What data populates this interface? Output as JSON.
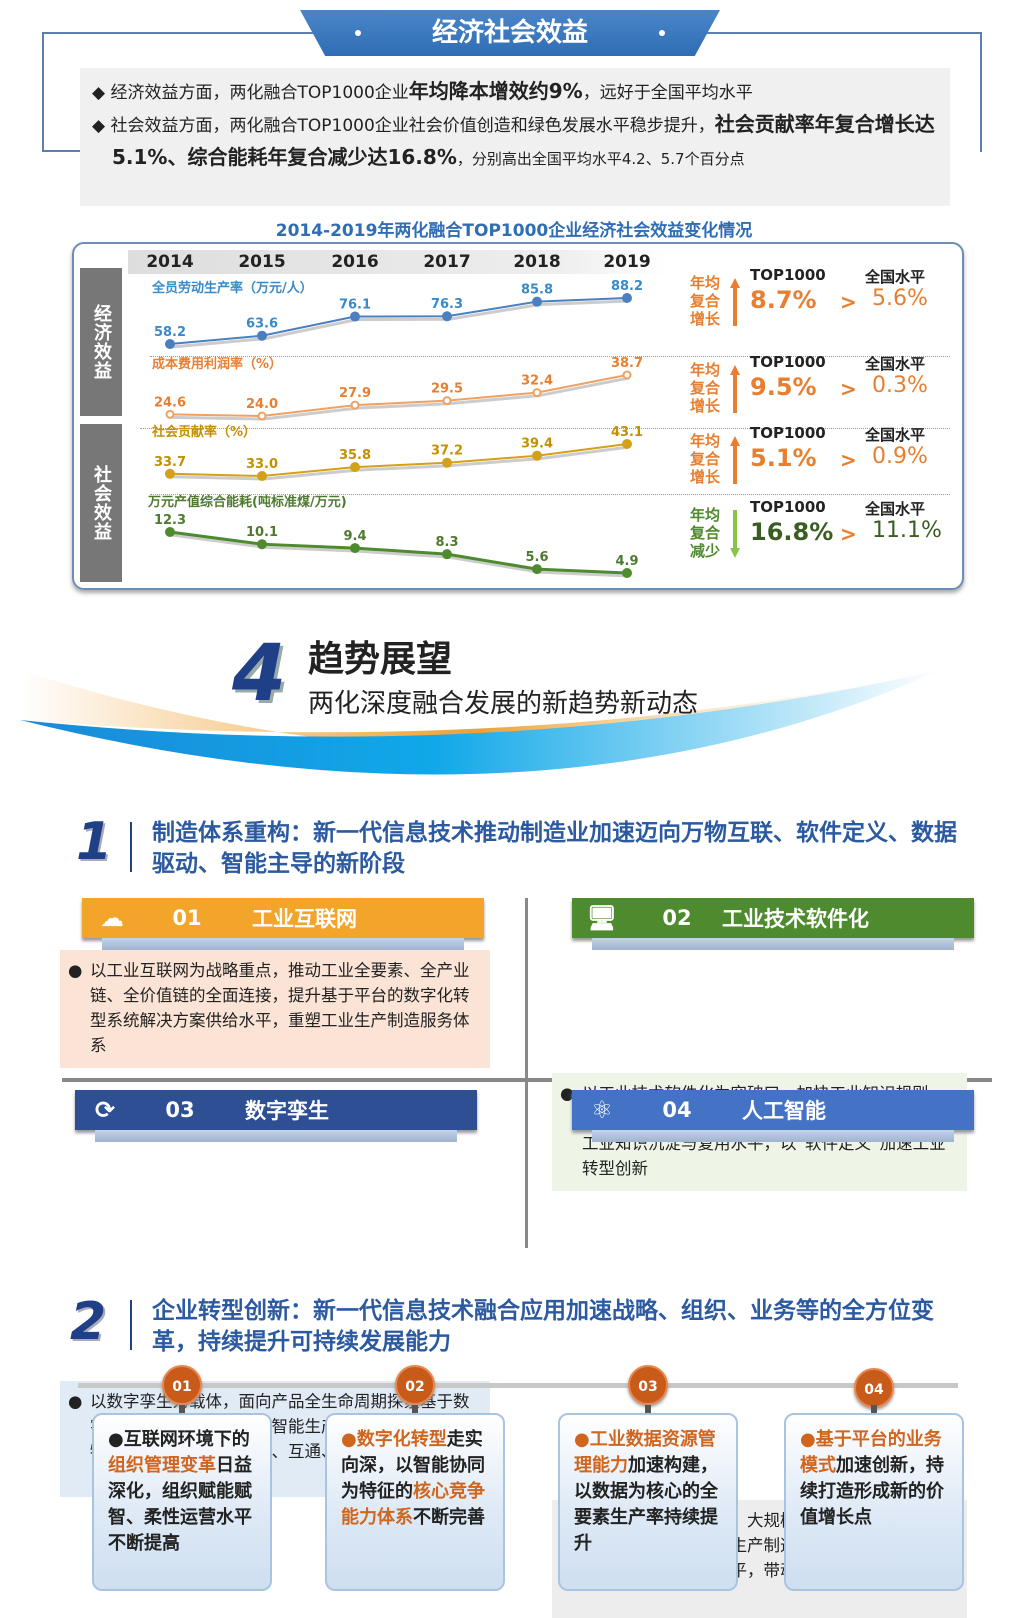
{
  "banner": {
    "title": "经济社会效益"
  },
  "summary": {
    "l1a": "经济效益方面，两化融合TOP1000企业",
    "l1b": "年均降本增效约9%",
    "l1c": "，远好于全国平均水平",
    "l2a": "社会效益方面，两化融合TOP1000企业社会价值创造和绿色发展水平稳步提升，",
    "l2b": "社会贡献率年复合增长达5.1%、综合能耗年复合减少达16.8%",
    "l2c": "，分别高出全国平均水平4.2、5.7个百分点"
  },
  "chart_data": {
    "type": "line",
    "title": "2014-2019年两化融合TOP1000企业经济社会效益变化情况",
    "categories": [
      "2014",
      "2015",
      "2016",
      "2017",
      "2018",
      "2019"
    ],
    "groups": [
      "经济效益",
      "社会效益"
    ],
    "series": [
      {
        "name": "全员劳动生产率（万元/人）",
        "values": [
          58.2,
          63.6,
          76.1,
          76.3,
          85.8,
          88.2
        ],
        "color": "#4a7fc0",
        "label_color": "#3a8ac8"
      },
      {
        "name": "成本费用利润率（%）",
        "values": [
          24.6,
          24.0,
          27.9,
          29.5,
          32.4,
          38.7
        ],
        "color": "#f0a060",
        "label_color": "#e87f30"
      },
      {
        "name": "社会贡献率（%）",
        "values": [
          33.7,
          33.0,
          35.8,
          37.2,
          39.4,
          43.1
        ],
        "color": "#d4a017",
        "label_color": "#c49000"
      },
      {
        "name": "万元产值综合能耗(吨标准煤/万元)",
        "values": [
          12.3,
          10.1,
          9.4,
          8.3,
          5.6,
          4.9
        ],
        "color": "#4e8a2e",
        "label_color": "#4e7a2e"
      }
    ]
  },
  "stats": [
    {
      "label": "年均复合增长",
      "col1": "TOP1000",
      "col2": "全国水平",
      "top": "8.7%",
      "gt": ">",
      "nat": "5.6%",
      "color": "#e87f30",
      "dir": "up"
    },
    {
      "label": "年均复合增长",
      "col1": "TOP1000",
      "col2": "全国水平",
      "top": "9.5%",
      "gt": ">",
      "nat": "0.3%",
      "color": "#e87f30",
      "dir": "up"
    },
    {
      "label": "年均复合增长",
      "col1": "TOP1000",
      "col2": "全国水平",
      "top": "5.1%",
      "gt": ">",
      "nat": "0.9%",
      "color": "#e87f30",
      "dir": "up"
    },
    {
      "label": "年均复合减少",
      "col1": "TOP1000",
      "col2": "全国水平",
      "top": "16.8%",
      "gt": ">",
      "nat": "11.1%",
      "color": "#4e7a2e",
      "dir": "down"
    }
  ],
  "section4": {
    "num": "4",
    "title": "趋势展望",
    "subtitle": "两化深度融合发展的新趋势新动态"
  },
  "sec1": {
    "num": "1",
    "text": "制造体系重构：新一代信息技术推动制造业加速迈向万物互联、软件定义、数据驱动、智能主导的新阶段"
  },
  "cards": [
    {
      "num": "01",
      "title": "工业互联网",
      "icon": "cloud-gear-icon",
      "color": "#f3a42a",
      "bg": "#fbe4d5",
      "text": "以工业互联网为战略重点，推动工业全要素、全产业链、全价值链的全面连接，提升基于平台的数字化转型系统解决方案供给水平，重塑工业生产制造服务体系"
    },
    {
      "num": "02",
      "title": "工业技术软件化",
      "icon": "monitor-gear-icon",
      "color": "#4e8a2e",
      "bg": "#eef5e6",
      "text": "以工业技术软件化为突破口，加快工业知识规则化、模型化、软件化，促进OT和IT深度融合，提升工业知识沉淀与复用水平，以“软件定义”加速工业转型创新"
    },
    {
      "num": "03",
      "title": "数字孪生",
      "icon": "cycle-gear-icon",
      "color": "#2e4f94",
      "bg": "#e1ebf6",
      "text": "以数字孪生为载体，面向产品全生命周期探索基于数字孪生系统的智能设计、智能生产、智能服务，构建物理世界与数字世界互联、互通、互操作体系"
    },
    {
      "num": "04",
      "title": "人工智能",
      "icon": "atom-icon",
      "color": "#4472c4",
      "bg": "#ededed",
      "text": "以人工智能为驱动力，大规模自动化构建工业知识图谱，促进传统研发生产制造体系的颠覆式变革，提升人机智能协同水平，带动生产力整体跃升"
    }
  ],
  "sec2": {
    "num": "2",
    "text": "企业转型创新：新一代信息技术融合应用加速战略、组织、业务等的全方位变革，持续提升可持续发展能力"
  },
  "timeline": [
    {
      "num": "01",
      "parts": [
        [
          "互联网环境下的",
          0
        ],
        [
          "组织管理变革",
          1
        ],
        [
          "日益深化，组织赋能赋智、柔性运营水平不断提高",
          0
        ]
      ]
    },
    {
      "num": "02",
      "parts": [
        [
          "数字化转型",
          1
        ],
        [
          "走实向深，以智能协同为特征的",
          0
        ],
        [
          "核心竞争能力体系",
          1
        ],
        [
          "不断完善",
          0
        ]
      ]
    },
    {
      "num": "03",
      "parts": [
        [
          "工业数据资源管理能力",
          1
        ],
        [
          "加速构建，以数据为核心的全要素生产率持续提升",
          0
        ]
      ]
    },
    {
      "num": "04",
      "parts": [
        [
          "基于平台的业务模式",
          1
        ],
        [
          "加速创新，持续打造形成新的价值增长点",
          0
        ]
      ]
    }
  ]
}
